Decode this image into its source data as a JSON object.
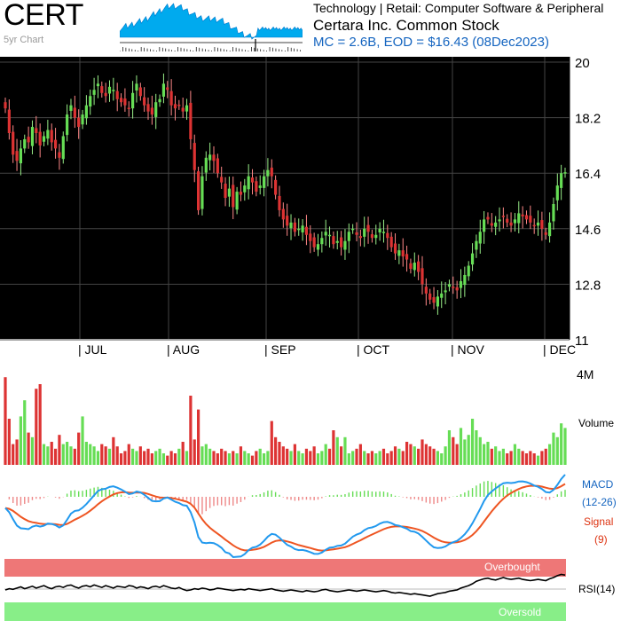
{
  "header": {
    "ticker": "CERT",
    "chart_label": "5yr Chart",
    "sector": "Technology | Retail: Computer Software & Peripheral",
    "company": "Certara Inc. Common Stock",
    "market_summary": "MC = 2.6B, EOD = $16.43 (08Dec2023)"
  },
  "colors": {
    "up": "#66dd55",
    "down": "#dd3333",
    "up_wick": "#99ee88",
    "down_wick": "#ff8888",
    "macd": "#2299ee",
    "signal": "#ee5522",
    "overbought": "#ee7777",
    "oversold": "#88ee88",
    "spark": "#00aaee"
  },
  "chart_data": [
    {
      "type": "candlestick",
      "title": "",
      "x_ticks": [
        "| JUL",
        "| AUG",
        "| SEP",
        "| OCT",
        "| NOV",
        "| DEC"
      ],
      "y_ticks": [
        "20",
        "18.2",
        "16.4",
        "14.6",
        "12.8",
        "11"
      ],
      "ylim": [
        11,
        20
      ],
      "closes": [
        18.5,
        17.7,
        17.0,
        16.8,
        17.2,
        17.5,
        17.4,
        17.9,
        17.7,
        17.3,
        17.6,
        17.8,
        17.4,
        17.2,
        16.9,
        17.6,
        18.3,
        18.6,
        18.2,
        17.9,
        18.3,
        18.6,
        18.9,
        19.1,
        19.3,
        19.0,
        18.9,
        19.2,
        19.1,
        18.8,
        18.7,
        18.6,
        18.5,
        19.0,
        19.3,
        18.9,
        18.6,
        18.4,
        18.3,
        18.7,
        18.8,
        19.3,
        19.1,
        18.6,
        18.5,
        18.6,
        18.4,
        18.6,
        17.5,
        16.5,
        15.2,
        16.3,
        16.9,
        17.0,
        16.8,
        16.4,
        16.1,
        15.6,
        15.9,
        15.3,
        15.8,
        15.7,
        16.0,
        16.3,
        16.1,
        15.8,
        16.0,
        16.3,
        16.5,
        16.3,
        15.7,
        15.2,
        14.9,
        14.7,
        14.8,
        14.5,
        14.6,
        14.7,
        14.4,
        14.2,
        14.0,
        14.1,
        14.3,
        14.5,
        14.4,
        14.1,
        14.2,
        14.0,
        14.2,
        14.5,
        14.6,
        14.4,
        14.3,
        14.6,
        14.5,
        14.3,
        14.4,
        14.6,
        14.5,
        14.3,
        14.0,
        13.8,
        13.9,
        13.7,
        13.6,
        13.3,
        13.5,
        13.2,
        12.8,
        12.5,
        12.3,
        12.2,
        12.4,
        12.5,
        12.6,
        12.8,
        12.7,
        12.6,
        12.9,
        13.1,
        13.4,
        13.8,
        14.2,
        14.5,
        14.9,
        14.9,
        14.7,
        14.8,
        14.9,
        15.0,
        14.8,
        14.7,
        14.9,
        15.1,
        15.0,
        14.9,
        14.8,
        14.7,
        14.8,
        14.6,
        14.4,
        14.8,
        15.4,
        16.0,
        16.4,
        16.43
      ]
    },
    {
      "type": "bar",
      "title": "",
      "ylabel": "Volume",
      "y_ticks": [
        "4M"
      ],
      "ylim": [
        0,
        4000000
      ],
      "values_m": [
        3.8,
        2.0,
        0.9,
        1.1,
        2.1,
        2.8,
        1.4,
        1.2,
        3.3,
        3.5,
        0.9,
        0.8,
        1.0,
        0.7,
        1.3,
        0.9,
        1.0,
        0.8,
        0.7,
        1.4,
        2.1,
        1.0,
        0.9,
        0.8,
        0.6,
        0.9,
        0.8,
        0.7,
        1.2,
        0.8,
        0.5,
        0.6,
        0.9,
        0.7,
        0.6,
        0.8,
        0.6,
        0.7,
        0.5,
        0.6,
        0.7,
        0.5,
        0.4,
        0.6,
        0.5,
        0.7,
        1.0,
        0.6,
        3.0,
        1.1,
        2.4,
        0.8,
        0.9,
        0.7,
        0.6,
        0.5,
        0.7,
        0.6,
        0.5,
        0.6,
        0.5,
        0.8,
        0.6,
        0.5,
        0.4,
        0.6,
        0.7,
        0.5,
        0.6,
        1.9,
        1.2,
        1.0,
        0.8,
        0.7,
        0.6,
        0.9,
        0.6,
        0.5,
        0.7,
        0.6,
        0.8,
        0.5,
        0.6,
        0.9,
        0.7,
        1.5,
        1.2,
        0.8,
        1.2,
        0.5,
        0.6,
        0.7,
        0.9,
        0.6,
        0.5,
        0.6,
        0.5,
        0.6,
        0.7,
        0.5,
        0.6,
        0.8,
        0.7,
        0.6,
        1.0,
        0.9,
        0.8,
        0.7,
        1.1,
        0.9,
        0.8,
        0.7,
        0.6,
        0.5,
        0.8,
        1.5,
        1.2,
        0.9,
        1.6,
        1.1,
        1.3,
        2.0,
        1.5,
        1.2,
        0.9,
        1.0,
        0.7,
        0.8,
        0.6,
        0.7,
        0.5,
        0.6,
        0.9,
        0.7,
        0.6,
        0.5,
        0.6,
        0.5,
        0.4,
        0.6,
        0.7,
        0.9,
        1.4,
        1.2,
        1.8,
        1.6
      ]
    },
    {
      "type": "line",
      "title": "",
      "series_labels": [
        "MACD",
        "(12-26)",
        "Signal",
        "(9)"
      ]
    },
    {
      "type": "line",
      "title": "",
      "labels": {
        "overbought": "Overbought",
        "oversold": "Oversold",
        "name": "RSI(14)"
      },
      "ylim": [
        0,
        100
      ],
      "bands": {
        "overbought": 70,
        "oversold": 30
      },
      "rsi_values": [
        50,
        52,
        51,
        53,
        55,
        52,
        54,
        56,
        53,
        55,
        57,
        54,
        52,
        55,
        56,
        54,
        57,
        58,
        55,
        53,
        56,
        57,
        55,
        58,
        56,
        54,
        57,
        55,
        53,
        56,
        55,
        54,
        57,
        56,
        53,
        55,
        54,
        52,
        55,
        56,
        54,
        57,
        55,
        53,
        52,
        54,
        51,
        49,
        50,
        52,
        51,
        53,
        52,
        50,
        51,
        53,
        52,
        51,
        50,
        49,
        50,
        51,
        50,
        52,
        51,
        50,
        49,
        50,
        51,
        52,
        50,
        49,
        48,
        49,
        50,
        49,
        48,
        47,
        49,
        48,
        47,
        48,
        50,
        51,
        49,
        48,
        47,
        48,
        49,
        50,
        49,
        48,
        49,
        50,
        49,
        48,
        47,
        48,
        49,
        48,
        46,
        45,
        46,
        45,
        44,
        43,
        44,
        43,
        42,
        41,
        40,
        42,
        44,
        45,
        46,
        48,
        49,
        50,
        53,
        55,
        57,
        60,
        64,
        66,
        68,
        69,
        67,
        66,
        68,
        70,
        68,
        67,
        68,
        69,
        67,
        66,
        65,
        66,
        67,
        66,
        65,
        68,
        70,
        73,
        75,
        74
      ]
    }
  ]
}
